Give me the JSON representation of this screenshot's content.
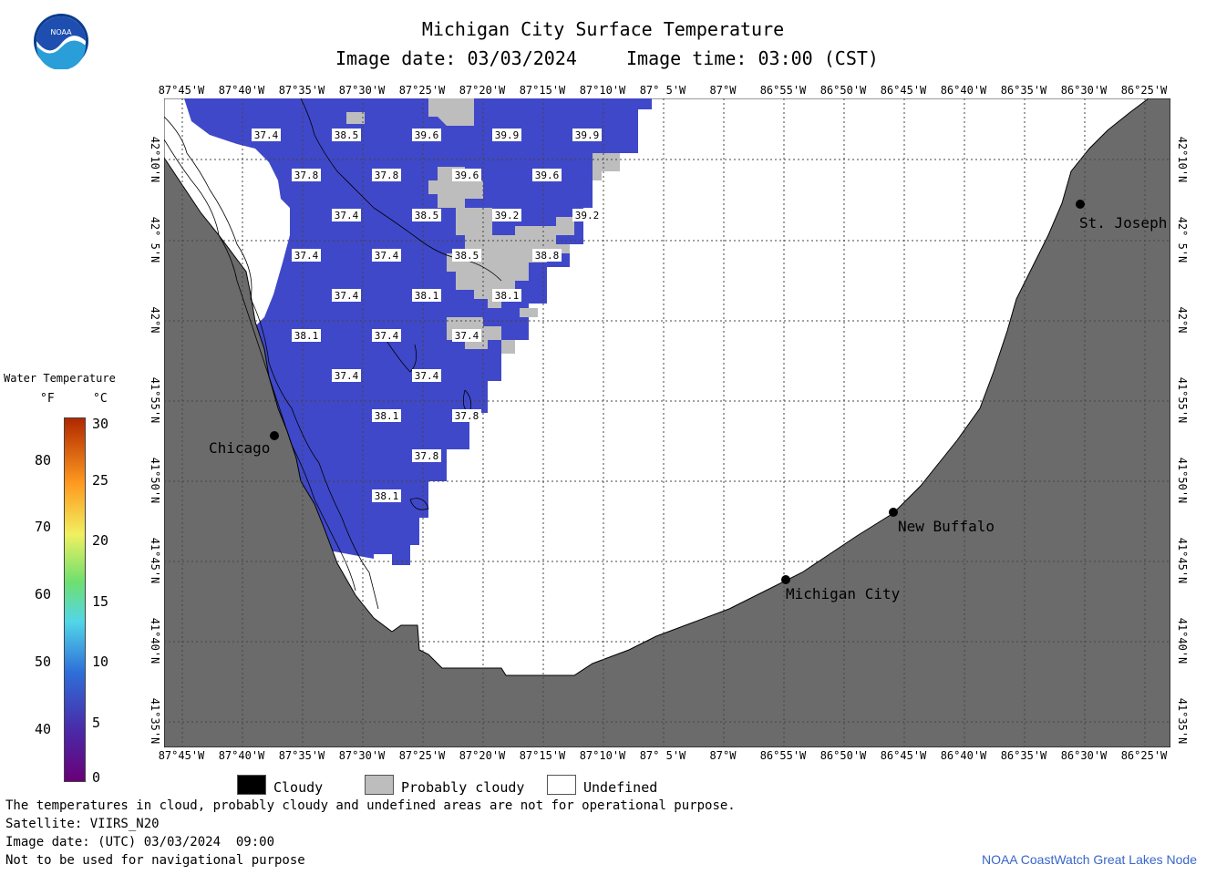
{
  "header": {
    "title": "Michigan City Surface Temperature",
    "date_line": "Image date: 03/03/2024",
    "time_line": "Image time: 03:00 (CST)"
  },
  "logo": {
    "text": "NOAA",
    "icon": "noaa-logo-icon"
  },
  "map": {
    "lon_labels": [
      "87°45'W",
      "87°40'W",
      "87°35'W",
      "87°30'W",
      "87°25'W",
      "87°20'W",
      "87°15'W",
      "87°10'W",
      "87° 5'W",
      "87°W",
      "86°55'W",
      "86°50'W",
      "86°45'W",
      "86°40'W",
      "86°35'W",
      "86°30'W",
      "86°25'W"
    ],
    "lat_labels": [
      "42°10'N",
      "42° 5'N",
      "42°N",
      "41°55'N",
      "41°50'N",
      "41°45'N",
      "41°40'N",
      "41°35'N"
    ],
    "cities": [
      {
        "name": "Chicago"
      },
      {
        "name": "St. Joseph"
      },
      {
        "name": "New Buffalo"
      },
      {
        "name": "Michigan City"
      }
    ],
    "temperature_labels": [
      "37.4",
      "38.5",
      "39.6",
      "39.9",
      "39.9",
      "37.8",
      "37.8",
      "39.6",
      "39.6",
      "37.4",
      "38.5",
      "39.2",
      "39.2",
      "37.4",
      "37.4",
      "38.5",
      "38.8",
      "37.4",
      "38.1",
      "38.1",
      "38.1",
      "37.4",
      "37.4",
      "37.4",
      "37.4",
      "38.1",
      "37.8",
      "37.8",
      "38.1"
    ],
    "colors": {
      "land": "#6b6b6b",
      "water": "#3f48c8",
      "cloudy": "#000000",
      "probably_cloudy": "#bdbdbd",
      "undefined": "#ffffff"
    }
  },
  "legend": {
    "title": "Water Temperature",
    "unit_f": "°F",
    "unit_c": "°C",
    "f_ticks": [
      "80",
      "70",
      "60",
      "50",
      "40"
    ],
    "c_ticks": [
      "30",
      "25",
      "20",
      "15",
      "10",
      "5",
      "0"
    ]
  },
  "key": {
    "cloudy": "Cloudy",
    "probably_cloudy": "Probably cloudy",
    "undefined": "Undefined"
  },
  "footer": {
    "disclaimer": "The temperatures in cloud, probably cloudy and undefined areas are not for operational purpose.",
    "satellite": "Satellite: VIIRS_N20",
    "utc_date": "Image date: (UTC) 03/03/2024  09:00",
    "nav": "Not to be used for navigational purpose",
    "credit": "NOAA CoastWatch Great Lakes Node"
  }
}
